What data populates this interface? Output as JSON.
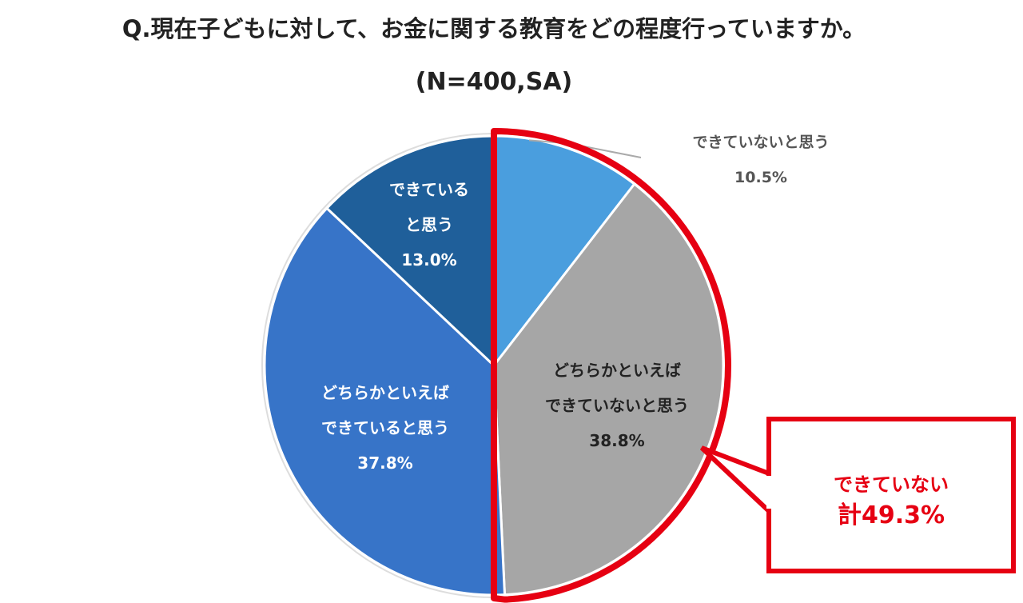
{
  "chart_data": {
    "type": "pie",
    "title": "Q.現在子どもに対して、お金に関する教育をどの程度行っていますか。",
    "subtitle": "(N=400,SA)",
    "slices": [
      {
        "label_lines": [
          "できていないと思う"
        ],
        "value_label": "10.5%",
        "value": 10.5,
        "color": "#4a9ede",
        "label_color": "#555555"
      },
      {
        "label_lines": [
          "どちらかといえば",
          "できていないと思う"
        ],
        "value_label": "38.8%",
        "value": 38.8,
        "color": "#a6a6a6",
        "label_color": "#222222"
      },
      {
        "label_lines": [
          "どちらかといえば",
          "できていると思う"
        ],
        "value_label": "37.8%",
        "value": 37.8,
        "color": "#3774c8",
        "label_color": "#ffffff"
      },
      {
        "label_lines": [
          "できている",
          "と思う"
        ],
        "value_label": "13.0%",
        "value": 13.0,
        "color": "#1f5f9a",
        "label_color": "#ffffff"
      }
    ],
    "highlight": {
      "line1": "できていない",
      "line2": "計49.3%",
      "value": 49.3,
      "color": "#e60012"
    }
  }
}
